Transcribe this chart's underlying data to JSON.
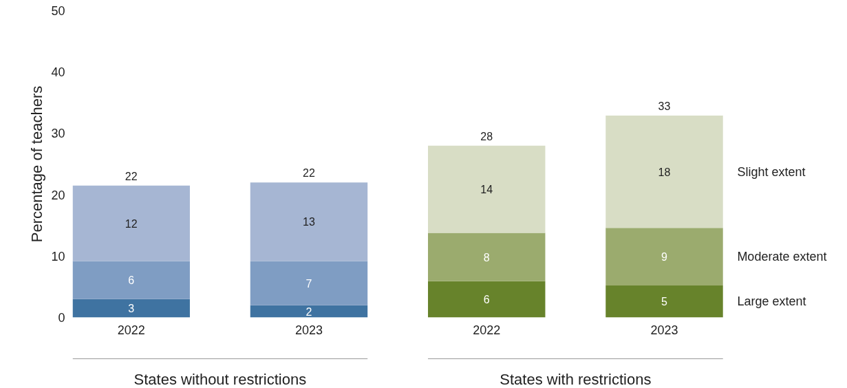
{
  "chart_data": {
    "type": "bar",
    "stacked": true,
    "ylabel": "Percentage of teachers",
    "categories": [
      "2022",
      "2023",
      "2022",
      "2023"
    ],
    "ylim": [
      0,
      50
    ],
    "yticks": [
      0,
      10,
      20,
      30,
      40,
      50
    ],
    "grid": false,
    "legend": false,
    "series": [
      {
        "name": "Large extent",
        "colors": [
          "#3f73a1",
          "#3f73a1",
          "#67832b",
          "#67832b"
        ],
        "values": [
          3.0,
          2.0,
          5.9,
          5.2
        ],
        "value_labels": [
          "3",
          "2",
          "6",
          "5"
        ]
      },
      {
        "name": "Moderate extent",
        "colors": [
          "#7f9dc3",
          "#7f9dc3",
          "#9bab6e",
          "#9bab6e"
        ],
        "values": [
          6.2,
          7.2,
          7.9,
          9.4
        ],
        "value_labels": [
          "6",
          "7",
          "8",
          "9"
        ]
      },
      {
        "name": "Slight extent",
        "colors": [
          "#a6b6d3",
          "#a6b6d3",
          "#d8ddc5",
          "#d8ddc5"
        ],
        "values": [
          12.3,
          12.8,
          14.2,
          18.3
        ],
        "value_labels": [
          "12",
          "13",
          "14",
          "18"
        ]
      }
    ],
    "totals": [
      "22",
      "22",
      "28",
      "33"
    ],
    "annotations": [
      "States without restrictions",
      "States with restrictions"
    ]
  }
}
